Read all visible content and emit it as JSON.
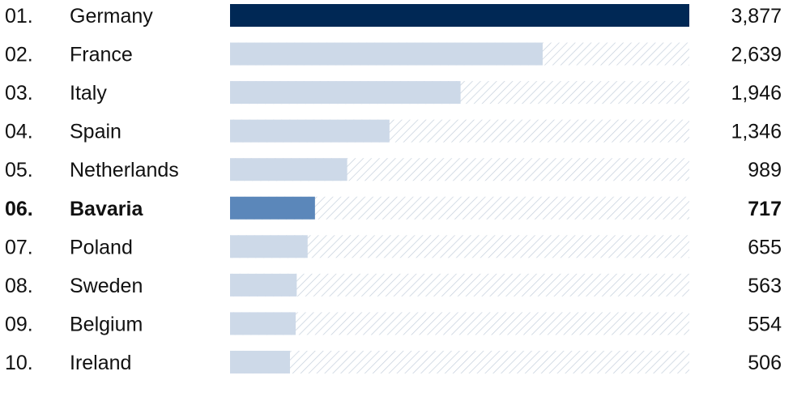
{
  "chart_data": {
    "type": "bar",
    "orientation": "horizontal",
    "title": "",
    "xlabel": "",
    "ylabel": "",
    "xlim": [
      0,
      3877
    ],
    "grid": false,
    "legend": "none",
    "categories": [
      "Germany",
      "France",
      "Italy",
      "Spain",
      "Netherlands",
      "Bavaria",
      "Poland",
      "Sweden",
      "Belgium",
      "Ireland"
    ],
    "ranks": [
      "01.",
      "02.",
      "03.",
      "04.",
      "05.",
      "06.",
      "07.",
      "08.",
      "09.",
      "10."
    ],
    "values": [
      3877,
      2639,
      1946,
      1346,
      989,
      717,
      655,
      563,
      554,
      506
    ],
    "value_labels": [
      "3,877",
      "2,639",
      "1,946",
      "1,346",
      "989",
      "717",
      "655",
      "563",
      "554",
      "506"
    ],
    "highlight": "Bavaria",
    "colors": {
      "leader": "#002855",
      "highlight": "#5b87ba",
      "default": "#cdd9e8",
      "remainder_hatch": "#c4cfdc",
      "text": "#111111"
    }
  }
}
